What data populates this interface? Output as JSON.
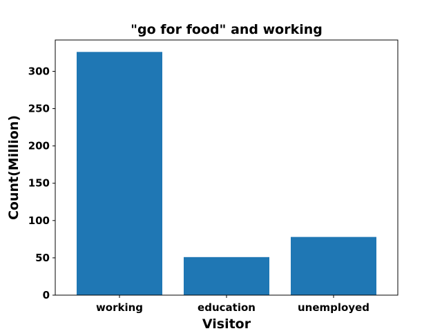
{
  "chart_data": {
    "type": "bar",
    "title": "\"go for food\" and working",
    "xlabel": "Visitor",
    "ylabel": "Count(Million)",
    "categories": [
      "working",
      "education",
      "unemployed"
    ],
    "values": [
      326,
      51,
      78
    ],
    "ylim": [
      0,
      342
    ],
    "yticks": [
      0,
      50,
      100,
      150,
      200,
      250,
      300
    ],
    "bar_color": "#1f77b4",
    "grid": false,
    "legend": false
  }
}
